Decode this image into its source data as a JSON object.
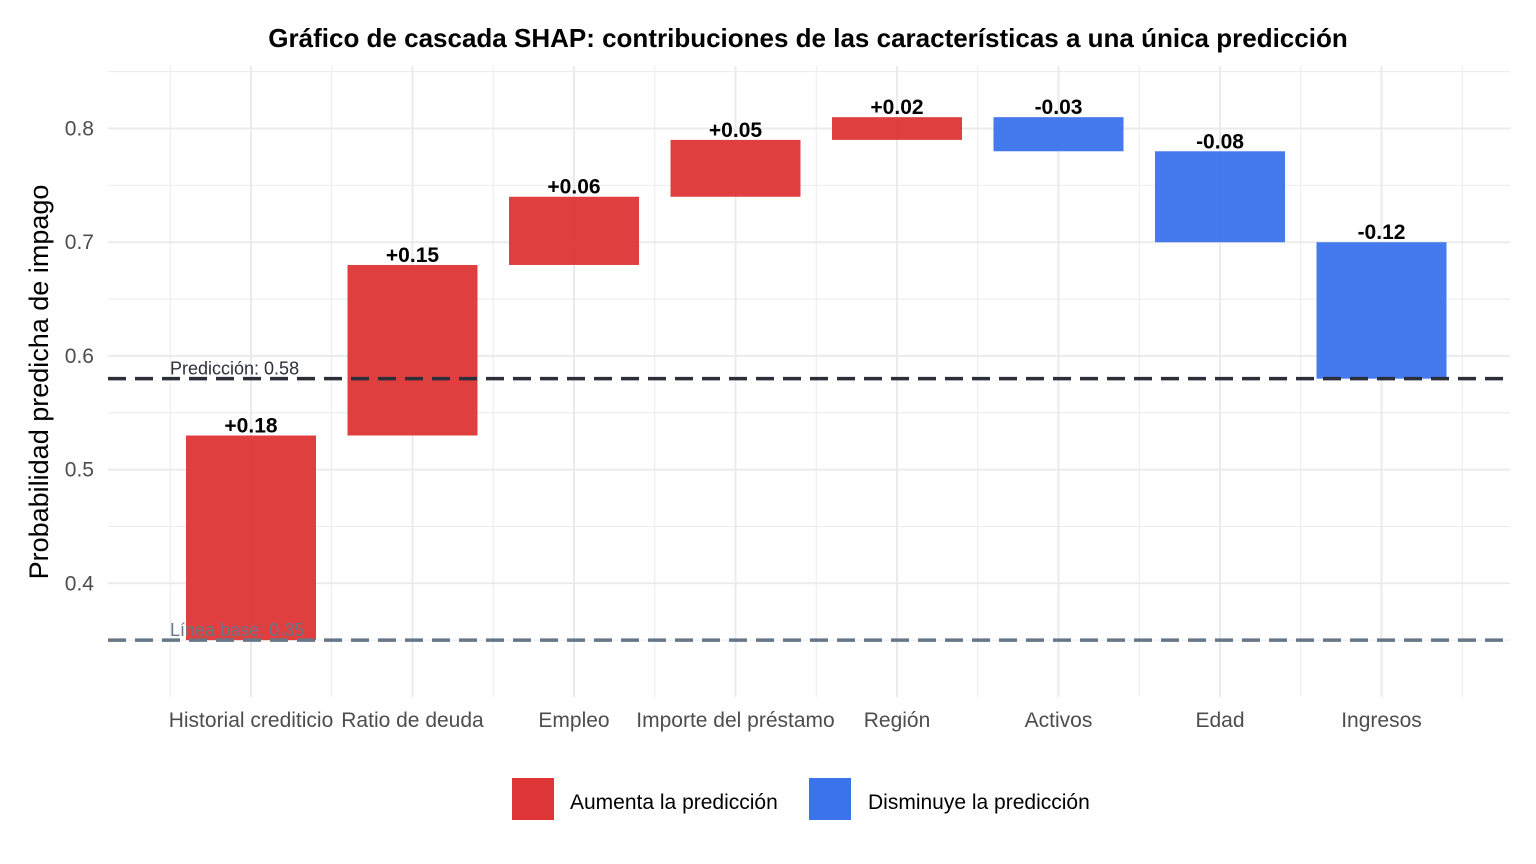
{
  "chart_data": {
    "type": "bar",
    "subtype": "waterfall",
    "title": "Gráfico de cascada SHAP: contribuciones de las características a una única predicción",
    "xlabel": "",
    "ylabel": "Probabilidad predicha de impago",
    "ylim": [
      0.3,
      0.855
    ],
    "yticks": [
      0.4,
      0.5,
      0.6,
      0.7,
      0.8
    ],
    "ytick_labels": [
      "0.4",
      "0.5",
      "0.6",
      "0.7",
      "0.8"
    ],
    "grid": true,
    "categories": [
      "Historial crediticio",
      "Ratio de deuda",
      "Empleo",
      "Importe del préstamo",
      "Región",
      "Activos",
      "Edad",
      "Ingresos"
    ],
    "bars": [
      {
        "start": 0.35,
        "end": 0.53,
        "label": "+0.18",
        "effect": "increase"
      },
      {
        "start": 0.53,
        "end": 0.68,
        "label": "+0.15",
        "effect": "increase"
      },
      {
        "start": 0.68,
        "end": 0.74,
        "label": "+0.06",
        "effect": "increase"
      },
      {
        "start": 0.74,
        "end": 0.79,
        "label": "+0.05",
        "effect": "increase"
      },
      {
        "start": 0.79,
        "end": 0.81,
        "label": "+0.02",
        "effect": "increase"
      },
      {
        "start": 0.81,
        "end": 0.78,
        "label": "-0.03",
        "effect": "decrease"
      },
      {
        "start": 0.78,
        "end": 0.7,
        "label": "-0.08",
        "effect": "decrease"
      },
      {
        "start": 0.7,
        "end": 0.58,
        "label": "-0.12",
        "effect": "decrease"
      }
    ],
    "reference_lines": [
      {
        "value": 0.58,
        "label": "Predicción: 0.58",
        "color": "#2b2f3a"
      },
      {
        "value": 0.35,
        "label": "Línea base: 0.35",
        "color": "#667788"
      }
    ],
    "legend": {
      "position": "bottom",
      "items": [
        {
          "label": "Aumenta la predicción",
          "color": "#de3536"
        },
        {
          "label": "Disminuye la predicción",
          "color": "#3a73ec"
        }
      ]
    },
    "colors": {
      "increase": "#de3536",
      "decrease": "#3a73ec",
      "grid": "#ebebeb"
    }
  }
}
